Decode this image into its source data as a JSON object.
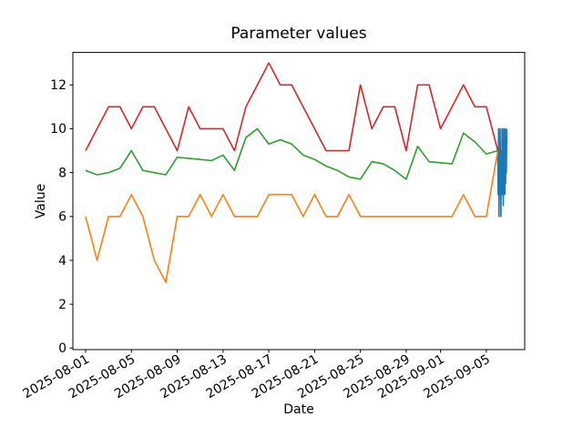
{
  "chart_data": {
    "type": "line",
    "title": "Parameter values",
    "xlabel": "Date",
    "ylabel": "Value",
    "grid": false,
    "legend": null,
    "x_axis": {
      "start_date": "2025-08-01",
      "end_date": "2025-09-06",
      "unit": "days",
      "xlim_days": [
        -1.114,
        38.35
      ]
    },
    "y_axis": {
      "ylim": [
        -0.07,
        13.48
      ]
    },
    "x_ticks": [
      {
        "day": 0,
        "label": "2025-08-01"
      },
      {
        "day": 4,
        "label": "2025-08-05"
      },
      {
        "day": 8,
        "label": "2025-08-09"
      },
      {
        "day": 12,
        "label": "2025-08-13"
      },
      {
        "day": 16,
        "label": "2025-08-17"
      },
      {
        "day": 20,
        "label": "2025-08-21"
      },
      {
        "day": 24,
        "label": "2025-08-25"
      },
      {
        "day": 28,
        "label": "2025-08-29"
      },
      {
        "day": 31,
        "label": "2025-09-01"
      },
      {
        "day": 35,
        "label": "2025-09-05"
      }
    ],
    "y_ticks": [
      {
        "value": 0,
        "label": "0"
      },
      {
        "value": 2,
        "label": "2"
      },
      {
        "value": 4,
        "label": "4"
      },
      {
        "value": 6,
        "label": "6"
      },
      {
        "value": 8,
        "label": "8"
      },
      {
        "value": 10,
        "label": "10"
      },
      {
        "value": 12,
        "label": "12"
      }
    ],
    "series": [
      {
        "name": "series-1-blue",
        "color": "#1f77b4",
        "x_days": [
          36.0,
          36.034,
          36.068,
          36.102,
          36.136,
          36.17,
          36.204,
          36.238,
          36.272,
          36.306,
          36.34,
          36.374,
          36.408,
          36.442,
          36.476,
          36.51,
          36.544,
          36.578,
          36.612,
          36.646,
          36.68,
          36.714,
          36.748,
          36.782
        ],
        "values": [
          8.8,
          7,
          10,
          6,
          9.5,
          7,
          10,
          7.5,
          6,
          9,
          7,
          10,
          7,
          9.5,
          6.5,
          10,
          8,
          9,
          7,
          10,
          7.5,
          9,
          8,
          10
        ]
      },
      {
        "name": "series-2-orange",
        "color": "#ff7f0e",
        "x_days": "daily",
        "values": [
          6,
          4,
          6,
          6,
          7,
          6,
          4,
          3,
          6,
          6,
          7,
          6,
          7,
          6,
          6,
          6,
          7,
          7,
          7,
          6,
          7,
          6,
          6,
          7,
          6,
          6,
          6,
          6,
          6,
          6,
          6,
          6,
          6,
          7,
          6,
          6,
          9
        ]
      },
      {
        "name": "series-3-green",
        "color": "#2ca02c",
        "x_days": "daily",
        "values": [
          8.1,
          7.9,
          8.0,
          8.2,
          9.0,
          8.1,
          8.0,
          7.9,
          8.7,
          8.65,
          8.6,
          8.55,
          8.8,
          8.1,
          9.6,
          10.0,
          9.3,
          9.5,
          9.3,
          8.8,
          8.6,
          8.3,
          8.1,
          7.8,
          7.7,
          8.5,
          8.4,
          8.1,
          7.7,
          9.2,
          8.5,
          8.45,
          8.4,
          9.8,
          9.4,
          8.85,
          9.0
        ]
      },
      {
        "name": "series-4-red",
        "color": "#d62728",
        "x_days": "daily",
        "values": [
          9,
          10,
          11,
          11,
          10,
          11,
          11,
          10,
          9,
          11,
          10,
          10,
          10,
          9,
          11,
          12,
          13,
          12,
          12,
          11,
          10,
          9,
          9,
          9,
          12,
          10,
          11,
          11,
          9,
          12,
          12,
          10,
          11,
          12,
          11,
          11,
          9
        ]
      }
    ]
  }
}
